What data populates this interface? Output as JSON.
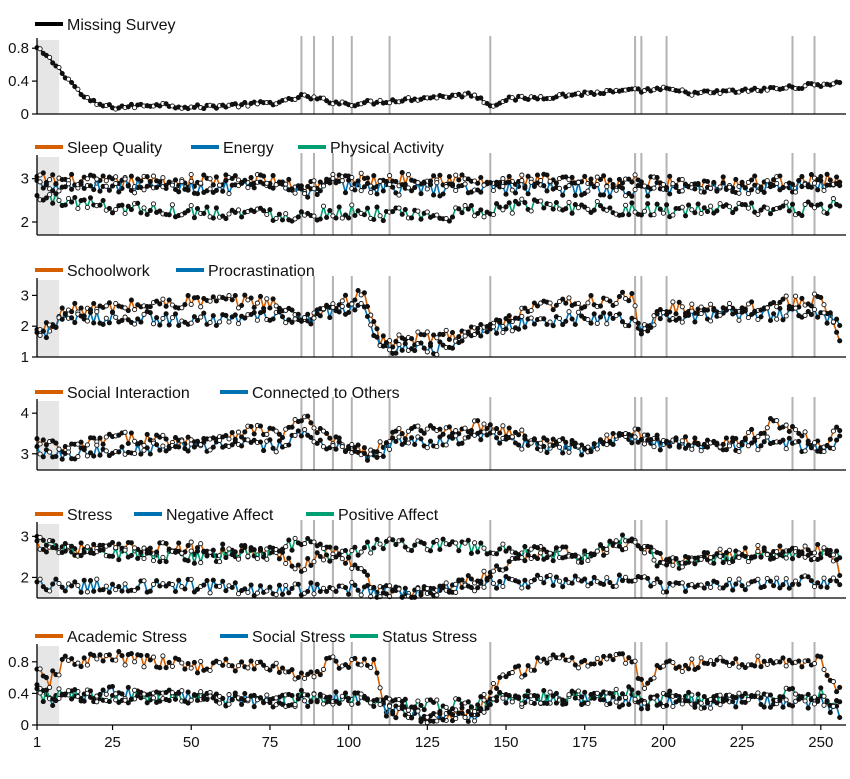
{
  "figure": {
    "background": "#ffffff",
    "axis_color": "#000000",
    "event_line_color": "#b3b3b3",
    "shade_color": "#e6e6e6"
  },
  "chart_data": [
    {
      "type": "line",
      "title": "",
      "xlabel": "",
      "ylabel": "",
      "xlim": [
        1,
        258
      ],
      "ylim": [
        0,
        0.9
      ],
      "yticks": [
        0,
        0.4,
        0.8
      ],
      "ytick_labels": [
        "0",
        "0.4",
        "0.8"
      ],
      "xticks": [],
      "xtick_labels": [],
      "shaded_x": [
        1,
        8
      ],
      "event_lines_x": [
        85,
        89,
        95,
        101,
        113,
        145,
        191,
        193,
        201,
        241,
        248
      ],
      "legend": "top-left",
      "series": [
        {
          "name": "Missing Survey",
          "color": "#000000",
          "x": [
            1,
            5,
            8,
            12,
            16,
            20,
            25,
            30,
            40,
            50,
            60,
            70,
            80,
            85,
            90,
            100,
            110,
            125,
            140,
            145,
            150,
            160,
            175,
            190,
            200,
            210,
            225,
            240,
            250,
            256
          ],
          "y": [
            0.8,
            0.67,
            0.55,
            0.38,
            0.2,
            0.12,
            0.08,
            0.09,
            0.12,
            0.08,
            0.1,
            0.12,
            0.15,
            0.22,
            0.18,
            0.12,
            0.15,
            0.2,
            0.24,
            0.1,
            0.18,
            0.2,
            0.25,
            0.28,
            0.3,
            0.25,
            0.28,
            0.32,
            0.36,
            0.38
          ]
        }
      ]
    },
    {
      "type": "line",
      "title": "",
      "xlabel": "",
      "ylabel": "",
      "xlim": [
        1,
        258
      ],
      "ylim": [
        1.7,
        3.5
      ],
      "yticks": [
        2,
        3
      ],
      "ytick_labels": [
        "2",
        "3"
      ],
      "xticks": [],
      "xtick_labels": [],
      "shaded_x": [
        1,
        8
      ],
      "event_lines_x": [
        85,
        89,
        95,
        101,
        113,
        145,
        191,
        193,
        201,
        241,
        248
      ],
      "legend": "top-left",
      "series": [
        {
          "name": "Sleep Quality",
          "color": "#d55e00",
          "x": [
            1,
            10,
            25,
            50,
            75,
            85,
            95,
            110,
            125,
            145,
            160,
            175,
            190,
            200,
            225,
            250,
            256
          ],
          "y": [
            3.0,
            2.95,
            2.9,
            2.95,
            2.95,
            2.8,
            3.0,
            2.95,
            3.05,
            2.9,
            2.95,
            2.9,
            2.95,
            2.9,
            2.9,
            2.95,
            2.95
          ]
        },
        {
          "name": "Energy",
          "color": "#0072b2",
          "x": [
            1,
            10,
            25,
            50,
            75,
            85,
            95,
            110,
            125,
            145,
            160,
            175,
            190,
            200,
            225,
            250,
            256
          ],
          "y": [
            2.9,
            2.85,
            2.85,
            2.8,
            2.8,
            2.7,
            2.85,
            2.8,
            2.75,
            2.8,
            2.8,
            2.75,
            2.7,
            2.8,
            2.8,
            2.85,
            2.85
          ]
        },
        {
          "name": "Physical Activity",
          "color": "#009e73",
          "x": [
            1,
            10,
            25,
            50,
            75,
            85,
            95,
            110,
            125,
            145,
            160,
            175,
            190,
            200,
            225,
            250,
            256
          ],
          "y": [
            2.55,
            2.5,
            2.35,
            2.25,
            2.2,
            2.15,
            2.25,
            2.2,
            2.1,
            2.3,
            2.4,
            2.35,
            2.3,
            2.25,
            2.3,
            2.3,
            2.45
          ]
        }
      ]
    },
    {
      "type": "line",
      "title": "",
      "xlabel": "",
      "ylabel": "",
      "xlim": [
        1,
        258
      ],
      "ylim": [
        1,
        3.5
      ],
      "yticks": [
        1,
        2,
        3
      ],
      "ytick_labels": [
        "1",
        "2",
        "3"
      ],
      "xticks": [],
      "xtick_labels": [],
      "shaded_x": [
        1,
        8
      ],
      "event_lines_x": [
        85,
        89,
        95,
        101,
        113,
        145,
        191,
        193,
        201,
        241,
        248
      ],
      "legend": "top-left",
      "series": [
        {
          "name": "Schoolwork",
          "color": "#d55e00",
          "x": [
            1,
            5,
            10,
            25,
            50,
            75,
            85,
            95,
            105,
            110,
            115,
            130,
            145,
            160,
            175,
            190,
            193,
            200,
            225,
            250,
            256
          ],
          "y": [
            1.8,
            2.0,
            2.5,
            2.6,
            2.8,
            2.8,
            2.2,
            2.7,
            3.0,
            1.5,
            1.5,
            1.7,
            1.9,
            2.6,
            2.8,
            2.9,
            1.6,
            2.6,
            2.6,
            2.9,
            1.4
          ]
        },
        {
          "name": "Procrastination",
          "color": "#0072b2",
          "x": [
            1,
            5,
            10,
            25,
            50,
            75,
            85,
            95,
            105,
            110,
            115,
            130,
            145,
            160,
            175,
            190,
            193,
            200,
            225,
            250,
            256
          ],
          "y": [
            1.7,
            1.9,
            2.2,
            2.3,
            2.2,
            2.3,
            2.2,
            2.5,
            2.6,
            1.3,
            1.2,
            1.3,
            1.9,
            2.2,
            2.3,
            2.2,
            2.0,
            2.3,
            2.4,
            2.4,
            2.1
          ]
        }
      ]
    },
    {
      "type": "line",
      "title": "",
      "xlabel": "",
      "ylabel": "",
      "xlim": [
        1,
        258
      ],
      "ylim": [
        2.6,
        4.3
      ],
      "yticks": [
        3,
        4
      ],
      "ytick_labels": [
        "3",
        "4"
      ],
      "xticks": [],
      "xtick_labels": [],
      "shaded_x": [
        1,
        8
      ],
      "event_lines_x": [
        85,
        89,
        95,
        101,
        113,
        145,
        191,
        193,
        201,
        241,
        248
      ],
      "legend": "top-left",
      "series": [
        {
          "name": "Social Interaction",
          "color": "#d55e00",
          "x": [
            1,
            10,
            25,
            50,
            70,
            80,
            85,
            95,
            108,
            115,
            130,
            145,
            160,
            175,
            190,
            200,
            225,
            235,
            250,
            256
          ],
          "y": [
            3.3,
            3.1,
            3.4,
            3.3,
            3.6,
            3.5,
            3.9,
            3.3,
            3.0,
            3.5,
            3.6,
            3.7,
            3.3,
            3.2,
            3.5,
            3.3,
            3.3,
            3.8,
            3.2,
            3.6
          ]
        },
        {
          "name": "Connected to Others",
          "color": "#0072b2",
          "x": [
            1,
            10,
            25,
            50,
            70,
            80,
            85,
            95,
            108,
            115,
            130,
            145,
            160,
            175,
            190,
            200,
            225,
            235,
            250,
            256
          ],
          "y": [
            3.1,
            3.0,
            3.1,
            3.2,
            3.2,
            3.2,
            3.5,
            3.2,
            2.9,
            3.3,
            3.3,
            3.4,
            3.2,
            3.1,
            3.4,
            3.2,
            3.2,
            3.3,
            3.1,
            3.3
          ]
        }
      ]
    },
    {
      "type": "line",
      "title": "",
      "xlabel": "",
      "ylabel": "",
      "xlim": [
        1,
        258
      ],
      "ylim": [
        1.5,
        3.3
      ],
      "yticks": [
        2,
        3
      ],
      "ytick_labels": [
        "2",
        "3"
      ],
      "xticks": [],
      "xtick_labels": [],
      "shaded_x": [
        1,
        8
      ],
      "event_lines_x": [
        85,
        89,
        95,
        101,
        113,
        145,
        191,
        193,
        201,
        241,
        248
      ],
      "legend": "top-left",
      "series": [
        {
          "name": "Stress",
          "color": "#d55e00",
          "x": [
            1,
            10,
            25,
            50,
            75,
            85,
            95,
            110,
            120,
            130,
            145,
            160,
            175,
            190,
            200,
            225,
            250,
            256
          ],
          "y": [
            2.8,
            2.7,
            2.7,
            2.7,
            2.6,
            2.3,
            2.7,
            1.7,
            1.6,
            1.7,
            2.1,
            2.6,
            2.6,
            2.8,
            2.4,
            2.6,
            2.7,
            2.2
          ]
        },
        {
          "name": "Negative Affect",
          "color": "#0072b2",
          "x": [
            1,
            10,
            25,
            50,
            75,
            85,
            95,
            110,
            120,
            130,
            145,
            160,
            175,
            190,
            200,
            225,
            250,
            256
          ],
          "y": [
            1.8,
            1.8,
            1.8,
            1.8,
            1.7,
            1.7,
            1.8,
            1.65,
            1.6,
            1.7,
            1.9,
            1.9,
            1.9,
            1.9,
            1.8,
            1.8,
            1.9,
            1.8
          ]
        },
        {
          "name": "Positive Affect",
          "color": "#009e73",
          "x": [
            1,
            10,
            25,
            50,
            75,
            85,
            95,
            110,
            120,
            130,
            145,
            160,
            175,
            190,
            200,
            225,
            250,
            256
          ],
          "y": [
            2.9,
            2.7,
            2.6,
            2.5,
            2.6,
            2.9,
            2.5,
            2.8,
            2.8,
            2.8,
            2.7,
            2.6,
            2.5,
            3.0,
            2.3,
            2.5,
            2.6,
            2.6
          ]
        }
      ]
    },
    {
      "type": "line",
      "title": "",
      "xlabel": "",
      "ylabel": "",
      "xlim": [
        1,
        258
      ],
      "ylim": [
        0,
        1.0
      ],
      "yticks": [
        0,
        0.4,
        0.8
      ],
      "ytick_labels": [
        "0",
        "0.4",
        "0.8"
      ],
      "xticks": [
        1,
        25,
        50,
        75,
        100,
        125,
        150,
        175,
        200,
        225,
        250
      ],
      "xtick_labels": [
        "1",
        "25",
        "50",
        "75",
        "100",
        "125",
        "150",
        "175",
        "200",
        "225",
        "250"
      ],
      "shaded_x": [
        1,
        8
      ],
      "event_lines_x": [
        85,
        89,
        95,
        101,
        113,
        145,
        191,
        193,
        201,
        241,
        248
      ],
      "legend": "top-left",
      "series": [
        {
          "name": "Academic Stress",
          "color": "#d55e00",
          "x": [
            1,
            5,
            10,
            25,
            50,
            75,
            85,
            95,
            108,
            112,
            125,
            140,
            148,
            160,
            175,
            190,
            193,
            200,
            225,
            250,
            256
          ],
          "y": [
            0.65,
            0.55,
            0.8,
            0.85,
            0.75,
            0.75,
            0.6,
            0.8,
            0.75,
            0.2,
            0.1,
            0.15,
            0.55,
            0.8,
            0.8,
            0.85,
            0.5,
            0.75,
            0.8,
            0.8,
            0.45
          ]
        },
        {
          "name": "Social Stress",
          "color": "#0072b2",
          "x": [
            1,
            5,
            10,
            25,
            50,
            75,
            85,
            95,
            108,
            112,
            125,
            140,
            148,
            160,
            175,
            190,
            193,
            200,
            225,
            250,
            256
          ],
          "y": [
            0.45,
            0.3,
            0.35,
            0.4,
            0.35,
            0.3,
            0.3,
            0.35,
            0.3,
            0.2,
            0.1,
            0.1,
            0.35,
            0.3,
            0.35,
            0.3,
            0.25,
            0.3,
            0.3,
            0.3,
            0.15
          ]
        },
        {
          "name": "Status Stress",
          "color": "#009e73",
          "x": [
            1,
            5,
            10,
            25,
            50,
            75,
            85,
            95,
            108,
            112,
            125,
            140,
            148,
            160,
            175,
            190,
            193,
            200,
            225,
            250,
            256
          ],
          "y": [
            0.4,
            0.35,
            0.4,
            0.35,
            0.35,
            0.3,
            0.35,
            0.35,
            0.3,
            0.3,
            0.25,
            0.25,
            0.35,
            0.35,
            0.35,
            0.4,
            0.3,
            0.35,
            0.35,
            0.4,
            0.25
          ]
        }
      ]
    }
  ]
}
